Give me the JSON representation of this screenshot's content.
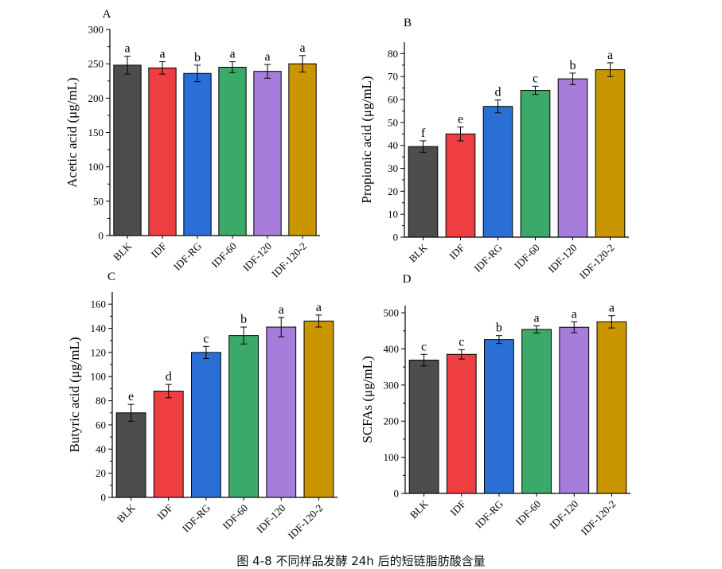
{
  "chart_data": [
    {
      "type": "bar",
      "panel_label": "A",
      "categories": [
        "BLK",
        "IDF",
        "IDF-RG",
        "IDF-60",
        "IDF-120",
        "IDF-120-2"
      ],
      "values": [
        248,
        244,
        236,
        245,
        239,
        250
      ],
      "errors": [
        13,
        9,
        12,
        8,
        10,
        12
      ],
      "significance": [
        "a",
        "a",
        "b",
        "a",
        "a",
        "a"
      ],
      "ylabel": "Acetic acid (μg/mL)",
      "ylim": [
        0,
        300
      ],
      "yticks": [
        0,
        50,
        100,
        150,
        200,
        250,
        300
      ],
      "colors": [
        "#4d4d4d",
        "#ef3e42",
        "#2b6fd6",
        "#3aa96a",
        "#a67ddb",
        "#c99600"
      ]
    },
    {
      "type": "bar",
      "panel_label": "B",
      "categories": [
        "BLK",
        "IDF",
        "IDF-RG",
        "IDF-60",
        "IDF-120",
        "IDF-120-2"
      ],
      "values": [
        39.5,
        45,
        57,
        64,
        69,
        73
      ],
      "errors": [
        2.5,
        3,
        2.8,
        1.8,
        2.5,
        3
      ],
      "significance": [
        "f",
        "e",
        "d",
        "c",
        "b",
        "a"
      ],
      "ylabel": "Propionic acid (μg/mL)",
      "ylim": [
        0,
        85
      ],
      "yticks": [
        0,
        10,
        20,
        30,
        40,
        50,
        60,
        70,
        80
      ],
      "colors": [
        "#4d4d4d",
        "#ef3e42",
        "#2b6fd6",
        "#3aa96a",
        "#a67ddb",
        "#c99600"
      ]
    },
    {
      "type": "bar",
      "panel_label": "C",
      "categories": [
        "BLK",
        "IDF",
        "IDF-RG",
        "IDF-60",
        "IDF-120",
        "IDF-120-2"
      ],
      "values": [
        70,
        88,
        120,
        134,
        141,
        146
      ],
      "errors": [
        7,
        5.5,
        5,
        7,
        8,
        5
      ],
      "significance": [
        "e",
        "d",
        "c",
        "b",
        "a",
        "a"
      ],
      "ylabel": "Butyric acid (μg/mL)",
      "ylim": [
        0,
        170
      ],
      "yticks": [
        0,
        20,
        40,
        60,
        80,
        100,
        120,
        140,
        160
      ],
      "colors": [
        "#4d4d4d",
        "#ef3e42",
        "#2b6fd6",
        "#3aa96a",
        "#a67ddb",
        "#c99600"
      ]
    },
    {
      "type": "bar",
      "panel_label": "D",
      "categories": [
        "BLK",
        "IDF",
        "IDF-RG",
        "IDF-60",
        "IDF-120",
        "IDF-120-2"
      ],
      "values": [
        369,
        385,
        426,
        454,
        460,
        475
      ],
      "errors": [
        16,
        13,
        11,
        10,
        15,
        17
      ],
      "significance": [
        "c",
        "c",
        "b",
        "a",
        "a",
        "a"
      ],
      "ylabel": "SCFAs (μg/mL)",
      "ylim": [
        0,
        520
      ],
      "yticks": [
        0,
        100,
        200,
        300,
        400,
        500
      ],
      "colors": [
        "#4d4d4d",
        "#ef3e42",
        "#2b6fd6",
        "#3aa96a",
        "#a67ddb",
        "#c99600"
      ]
    }
  ],
  "caption": "图 4-8 不同样品发酵 24h 后的短链脂肪酸含量"
}
